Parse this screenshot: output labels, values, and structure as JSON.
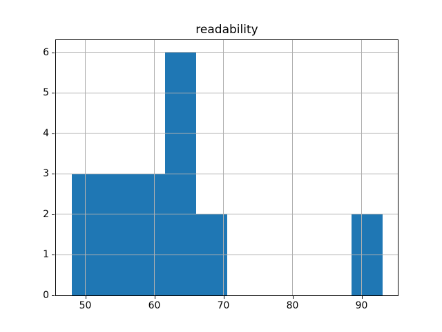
{
  "figure": {
    "background": "#ffffff"
  },
  "chart_data": {
    "type": "histogram",
    "title": "readability",
    "xlabel": "",
    "ylabel": "",
    "bin_edges": [
      48,
      52.5,
      57,
      61.5,
      66,
      70.5,
      75,
      79.5,
      84,
      88.5,
      93
    ],
    "counts": [
      3,
      3,
      3,
      6,
      2,
      0,
      0,
      0,
      0,
      2
    ],
    "xticks": [
      50,
      60,
      70,
      80,
      90
    ],
    "yticks": [
      0,
      1,
      2,
      3,
      4,
      5,
      6
    ],
    "xlim": [
      45.75,
      95.25
    ],
    "ylim": [
      0,
      6.3
    ],
    "grid": true,
    "legend_position": "none",
    "colors": {
      "bar": "#1f77b4",
      "grid": "#b0b0b0",
      "axis": "#000000",
      "text": "#000000",
      "background": "#ffffff"
    }
  }
}
